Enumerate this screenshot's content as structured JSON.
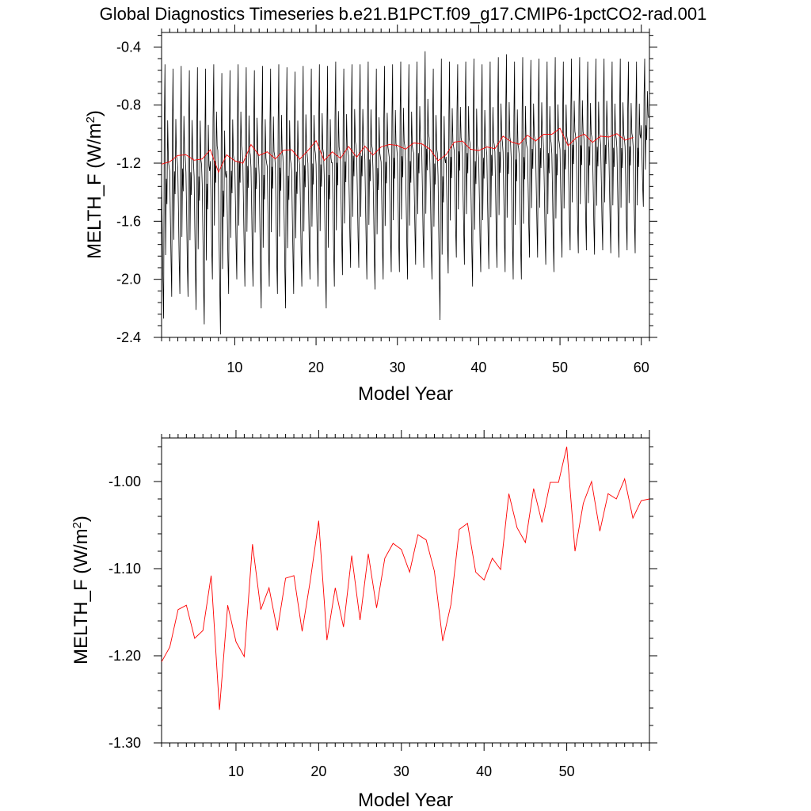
{
  "title": "Global Diagnostics Timeseries b.e21.B1PCT.f09_g17.CMIP6-1pctCO2-rad.001",
  "colors": {
    "monthly": "#000000",
    "annual": "#ff0000",
    "frame": "#000000"
  },
  "chart_data": [
    {
      "type": "line",
      "panel": "top",
      "xlabel": "Model Year",
      "ylabel_main": "MELTH_F (W/m",
      "ylabel_sup": "2",
      "ylabel_end": ")",
      "xlim": [
        1,
        61
      ],
      "ylim": [
        -2.4,
        -0.3
      ],
      "xticks": [
        10,
        20,
        30,
        40,
        50,
        60
      ],
      "xtick_labels": [
        "10",
        "20",
        "30",
        "40",
        "50",
        "60"
      ],
      "yticks": [
        -2.4,
        -2.0,
        -1.6,
        -1.2,
        -0.8,
        -0.4
      ],
      "ytick_labels": [
        "-2.4",
        "-2.0",
        "-1.6",
        "-1.2",
        "-0.8",
        "-0.4"
      ],
      "series": [
        {
          "style": "monthly",
          "yearly_min": [
            -2.27,
            -2.12,
            -2.1,
            -2.12,
            -2.21,
            -2.31,
            -2.0,
            -2.38,
            -2.1,
            -2.0,
            -2.05,
            -2.05,
            -2.2,
            -2.05,
            -2.1,
            -2.2,
            -2.1,
            -2.05,
            -2.0,
            -2.05,
            -2.2,
            -2.05,
            -1.97,
            -1.92,
            -1.92,
            -2.0,
            -2.07,
            -2.0,
            -1.95,
            -1.95,
            -2.0,
            -1.9,
            -1.92,
            -2.0,
            -2.28,
            -1.96,
            -1.85,
            -1.9,
            -2.05,
            -1.95,
            -1.93,
            -1.92,
            -1.95,
            -2.0,
            -2.0,
            -1.85,
            -1.85,
            -1.9,
            -1.95,
            -1.85,
            -1.8,
            -1.82,
            -1.8,
            -1.83,
            -1.8,
            -1.82,
            -1.85,
            -1.8,
            -1.82,
            -1.5
          ],
          "yearly_max": [
            -0.52,
            -0.55,
            -0.53,
            -0.56,
            -0.54,
            -0.55,
            -0.52,
            -0.58,
            -0.56,
            -0.52,
            -0.54,
            -0.56,
            -0.53,
            -0.55,
            -0.52,
            -0.54,
            -0.57,
            -0.53,
            -0.55,
            -0.52,
            -0.53,
            -0.5,
            -0.55,
            -0.52,
            -0.52,
            -0.5,
            -0.55,
            -0.53,
            -0.52,
            -0.5,
            -0.52,
            -0.5,
            -0.43,
            -0.55,
            -0.48,
            -0.5,
            -0.52,
            -0.5,
            -0.48,
            -0.52,
            -0.5,
            -0.47,
            -0.45,
            -0.5,
            -0.47,
            -0.49,
            -0.48,
            -0.5,
            -0.47,
            -0.5,
            -0.48,
            -0.47,
            -0.5,
            -0.48,
            -0.48,
            -0.5,
            -0.48,
            -0.5,
            -0.5,
            -0.48
          ]
        },
        {
          "style": "annual",
          "x": [
            1,
            2,
            3,
            4,
            5,
            6,
            7,
            8,
            9,
            10,
            11,
            12,
            13,
            14,
            15,
            16,
            17,
            18,
            19,
            20,
            21,
            22,
            23,
            24,
            25,
            26,
            27,
            28,
            29,
            30,
            31,
            32,
            33,
            34,
            35,
            36,
            37,
            38,
            39,
            40,
            41,
            42,
            43,
            44,
            45,
            46,
            47,
            48,
            49,
            50,
            51,
            52,
            53,
            54,
            55,
            56,
            57,
            58,
            59
          ],
          "values": [
            -1.207,
            -1.19,
            -1.147,
            -1.142,
            -1.18,
            -1.171,
            -1.108,
            -1.262,
            -1.142,
            -1.184,
            -1.201,
            -1.072,
            -1.147,
            -1.122,
            -1.171,
            -1.111,
            -1.108,
            -1.172,
            -1.113,
            -1.045,
            -1.182,
            -1.122,
            -1.167,
            -1.085,
            -1.159,
            -1.083,
            -1.145,
            -1.088,
            -1.071,
            -1.078,
            -1.104,
            -1.061,
            -1.067,
            -1.103,
            -1.183,
            -1.141,
            -1.055,
            -1.048,
            -1.104,
            -1.113,
            -1.088,
            -1.101,
            -1.014,
            -1.053,
            -1.07,
            -1.008,
            -1.047,
            -1.001,
            -1.001,
            -0.96,
            -1.08,
            -1.025,
            -1.0,
            -1.057,
            -1.014,
            -1.02,
            -0.997,
            -1.042,
            -1.022
          ]
        }
      ]
    },
    {
      "type": "line",
      "panel": "bottom",
      "xlabel": "Model Year",
      "ylabel_main": "MELTH_F (W/m",
      "ylabel_sup": "2",
      "ylabel_end": ")",
      "xlim": [
        1,
        60
      ],
      "ylim": [
        -1.3,
        -0.95
      ],
      "xticks": [
        10,
        20,
        30,
        40,
        50
      ],
      "xtick_labels": [
        "10",
        "20",
        "30",
        "40",
        "50"
      ],
      "yticks": [
        -1.3,
        -1.2,
        -1.1,
        -1.0
      ],
      "ytick_labels": [
        "-1.30",
        "-1.20",
        "-1.10",
        "-1.00"
      ],
      "series": [
        {
          "style": "annual",
          "x": [
            1,
            2,
            3,
            4,
            5,
            6,
            7,
            8,
            9,
            10,
            11,
            12,
            13,
            14,
            15,
            16,
            17,
            18,
            19,
            20,
            21,
            22,
            23,
            24,
            25,
            26,
            27,
            28,
            29,
            30,
            31,
            32,
            33,
            34,
            35,
            36,
            37,
            38,
            39,
            40,
            41,
            42,
            43,
            44,
            45,
            46,
            47,
            48,
            49,
            50,
            51,
            52,
            53,
            54,
            55,
            56,
            57,
            58,
            59,
            60
          ],
          "values": [
            -1.207,
            -1.19,
            -1.147,
            -1.142,
            -1.18,
            -1.171,
            -1.108,
            -1.262,
            -1.142,
            -1.184,
            -1.201,
            -1.072,
            -1.147,
            -1.122,
            -1.171,
            -1.111,
            -1.108,
            -1.172,
            -1.113,
            -1.045,
            -1.182,
            -1.122,
            -1.167,
            -1.085,
            -1.159,
            -1.083,
            -1.145,
            -1.088,
            -1.071,
            -1.078,
            -1.104,
            -1.061,
            -1.067,
            -1.103,
            -1.183,
            -1.141,
            -1.055,
            -1.048,
            -1.104,
            -1.113,
            -1.088,
            -1.101,
            -1.014,
            -1.053,
            -1.07,
            -1.008,
            -1.047,
            -1.001,
            -1.001,
            -0.96,
            -1.08,
            -1.025,
            -1.0,
            -1.057,
            -1.014,
            -1.02,
            -0.997,
            -1.042,
            -1.022,
            -1.02
          ]
        }
      ]
    }
  ]
}
